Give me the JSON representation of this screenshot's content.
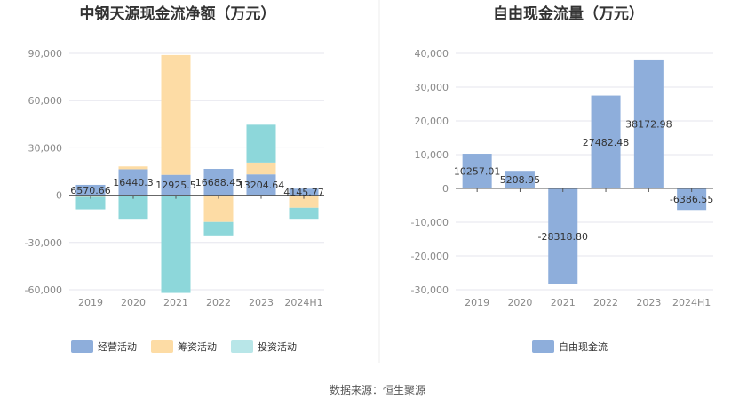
{
  "source_label": "数据来源：恒生聚源",
  "chart_data": [
    {
      "type": "bar",
      "stacked": true,
      "title": "中钢天源现金流净额（万元）",
      "categories": [
        "2019",
        "2020",
        "2021",
        "2022",
        "2023",
        "2024H1"
      ],
      "ylim": [
        -60000,
        90000
      ],
      "yticks": [
        90000,
        60000,
        30000,
        0,
        -30000,
        -60000
      ],
      "ytick_labels": [
        "90,000",
        "60,000",
        "30,000",
        "0",
        "-30,000",
        "-60,000"
      ],
      "series": [
        {
          "name": "经营活动",
          "color": "#8eaedb",
          "values": [
            6570.66,
            16440.3,
            12925.5,
            16688.45,
            13204.64,
            4145.77
          ]
        },
        {
          "name": "筹资活动",
          "color": "#fddca5",
          "values": [
            -1000,
            1800,
            76000,
            -17000,
            7500,
            -8000
          ]
        },
        {
          "name": "投资活动",
          "color": "#8dd7da",
          "values": [
            -8000,
            -15000,
            -62000,
            -8500,
            24000,
            -7000
          ]
        }
      ],
      "data_labels": [
        "6570.66",
        "16440.3",
        "12925.5",
        "16688.45",
        "13204.64",
        "4145.77"
      ],
      "legend_swatch_colors": [
        "#8eaedb",
        "#fddca5",
        "#b8e6e8"
      ],
      "legend": "bottom"
    },
    {
      "type": "bar",
      "title": "自由现金流量（万元）",
      "categories": [
        "2019",
        "2020",
        "2021",
        "2022",
        "2023",
        "2024H1"
      ],
      "ylim": [
        -30000,
        40000
      ],
      "yticks": [
        40000,
        30000,
        20000,
        10000,
        0,
        -10000,
        -20000,
        -30000
      ],
      "ytick_labels": [
        "40,000",
        "30,000",
        "20,000",
        "10,000",
        "0",
        "-10,000",
        "-20,000",
        "-30,000"
      ],
      "series": [
        {
          "name": "自由现金流",
          "color": "#8eaedb",
          "values": [
            10257.01,
            5208.95,
            -28318.8,
            27482.48,
            38172.98,
            -6386.55
          ]
        }
      ],
      "data_labels": [
        "10257.01",
        "5208.95",
        "-28318.80",
        "27482.48",
        "38172.98",
        "-6386.55"
      ],
      "legend_swatch_colors": [
        "#8eaedb"
      ],
      "legend": "bottom"
    }
  ]
}
